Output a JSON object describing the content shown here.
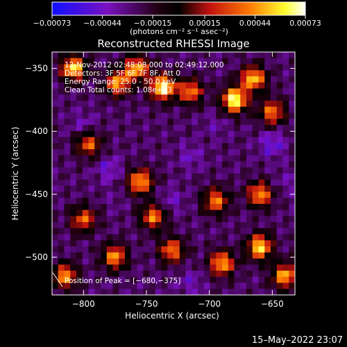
{
  "chart_data": {
    "type": "heatmap",
    "title": "Reconstructed RHESSI Image",
    "xlabel": "Heliocentric X (arcsec)",
    "ylabel": "Heliocentric Y (arcsec)",
    "xlim": [
      -825,
      -632
    ],
    "ylim": [
      -530,
      -337
    ],
    "x_ticks": [
      -800,
      -750,
      -700,
      -650
    ],
    "x_tick_labels": [
      "−800",
      "−750",
      "−700",
      "−650"
    ],
    "y_ticks": [
      -350,
      -400,
      -450,
      -500
    ],
    "y_tick_labels": [
      "−350",
      "−400",
      "−450",
      "−500"
    ],
    "grid": false,
    "colorbar": {
      "range": [
        -0.00073,
        0.00073
      ],
      "ticks": [
        -0.00073,
        -0.00044,
        -0.00015,
        0.00015,
        0.00044,
        0.00073
      ],
      "tick_labels": [
        "−0.00073",
        "−0.00044",
        "−0.00015",
        "0.00015",
        "0.00044",
        "0.00073"
      ],
      "units_label": "(photons cm⁻² s⁻¹ asec⁻²)",
      "colors": [
        "#1010ff",
        "#7a10c0",
        "#000000",
        "#c01010",
        "#ff7a00",
        "#ffff30",
        "#ffffff"
      ]
    },
    "annotations": [
      "12-Nov-2012 02:48:08.000 to 02:49:12.000",
      "Detectors: 3F 5F 6F 7F 8F, Att 0",
      "Energy Range: 25.0 - 50.0 keV",
      "Clean     Total counts: 1.08e+03"
    ],
    "peak": {
      "label": "Position of Peak = [−680,−375]",
      "x": -680,
      "y": -375
    },
    "bright_sources": [
      {
        "x": -808,
        "y": -350,
        "v": 0.0006
      },
      {
        "x": -773,
        "y": -362,
        "v": 0.00045
      },
      {
        "x": -758,
        "y": -350,
        "v": 0.0005
      },
      {
        "x": -737,
        "y": -365,
        "v": 0.0007
      },
      {
        "x": -715,
        "y": -368,
        "v": 0.0004
      },
      {
        "x": -680,
        "y": -375,
        "v": 0.00073
      },
      {
        "x": -665,
        "y": -358,
        "v": 0.00055
      },
      {
        "x": -650,
        "y": -385,
        "v": 0.0004
      },
      {
        "x": -796,
        "y": -410,
        "v": 0.00035
      },
      {
        "x": -755,
        "y": -440,
        "v": 0.0005
      },
      {
        "x": -745,
        "y": -468,
        "v": 0.0004
      },
      {
        "x": -800,
        "y": -470,
        "v": 0.00035
      },
      {
        "x": -695,
        "y": -455,
        "v": 0.0004
      },
      {
        "x": -660,
        "y": -450,
        "v": 0.00045
      },
      {
        "x": -775,
        "y": -500,
        "v": 0.00045
      },
      {
        "x": -730,
        "y": -495,
        "v": 0.0004
      },
      {
        "x": -690,
        "y": -505,
        "v": 0.0005
      },
      {
        "x": -660,
        "y": -492,
        "v": 0.0006
      },
      {
        "x": -640,
        "y": -515,
        "v": 0.0005
      },
      {
        "x": -815,
        "y": -515,
        "v": 0.00045
      }
    ],
    "dim_regions": [
      {
        "x": -650,
        "y": -410,
        "v": -0.0005
      },
      {
        "x": -780,
        "y": -430,
        "v": -0.00045
      },
      {
        "x": -715,
        "y": -420,
        "v": -0.0004
      },
      {
        "x": -800,
        "y": -395,
        "v": -0.0004
      },
      {
        "x": -695,
        "y": -395,
        "v": -0.00035
      },
      {
        "x": -730,
        "y": -455,
        "v": -0.0004
      },
      {
        "x": -640,
        "y": -440,
        "v": -0.00035
      },
      {
        "x": -715,
        "y": -520,
        "v": -0.0004
      },
      {
        "x": -775,
        "y": -455,
        "v": -0.0003
      }
    ]
  },
  "footer": {
    "timestamp": "15–May–2022 23:07"
  }
}
